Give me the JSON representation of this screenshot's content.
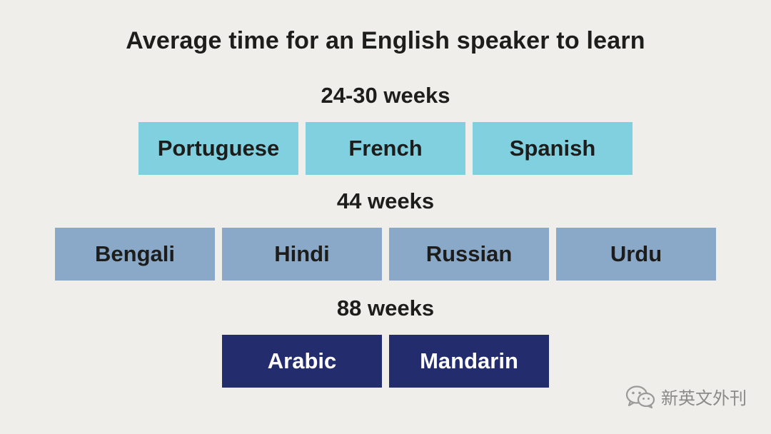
{
  "title": "Average time for an English speaker to learn",
  "groups": [
    {
      "label": "24-30 weeks",
      "languages": [
        "Portuguese",
        "French",
        "Spanish"
      ],
      "color": "#80d0e0"
    },
    {
      "label": "44 weeks",
      "languages": [
        "Bengali",
        "Hindi",
        "Russian",
        "Urdu"
      ],
      "color": "#8aa9c8"
    },
    {
      "label": "88 weeks",
      "languages": [
        "Arabic",
        "Mandarin"
      ],
      "color": "#232c6c"
    }
  ],
  "watermark": {
    "icon": "wechat-icon",
    "text": "新英文外刊"
  }
}
